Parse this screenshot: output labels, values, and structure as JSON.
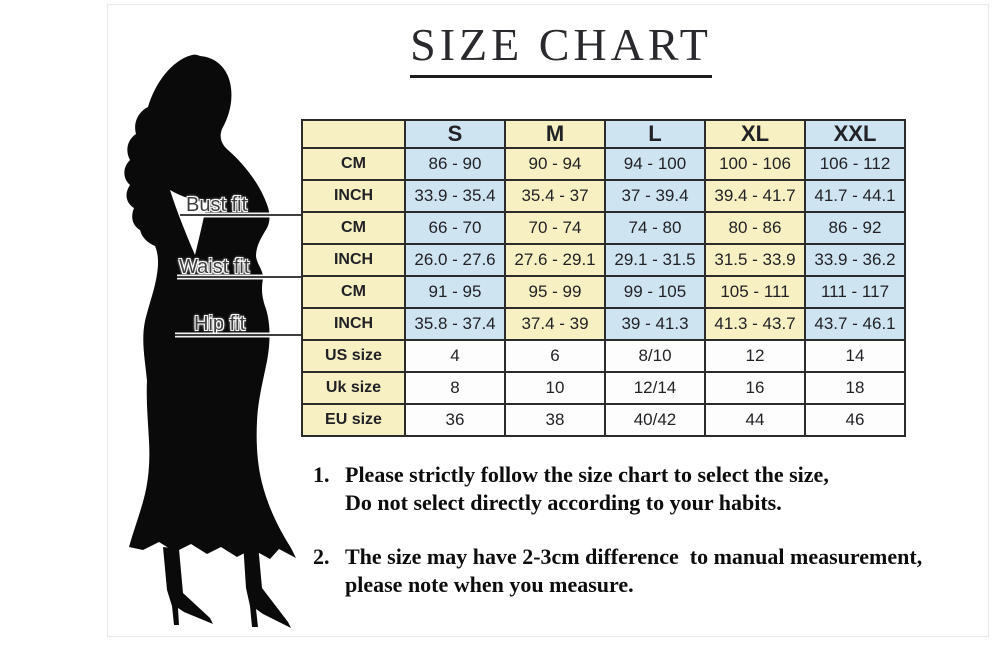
{
  "title": "SIZE CHART",
  "fit_labels": {
    "bust": "Bust fit",
    "waist": "Waist fit",
    "hip": "Hip fit"
  },
  "notes": [
    {
      "num": "1.",
      "line1": "Please strictly follow the size chart to select the size,",
      "line2": "Do not select directly according to your habits."
    },
    {
      "num": "2.",
      "line1": "The size may have 2-3cm difference  to manual measurement,",
      "line2": "please note when you measure."
    }
  ],
  "colors": {
    "yellow": "#f6f0c2",
    "blue": "#cee4f1",
    "white_cell": "#fdfdfd",
    "border": "#2b2b2b",
    "text": "#222226"
  },
  "chart_data": {
    "type": "table",
    "title": "SIZE CHART",
    "columns": [
      "S",
      "M",
      "L",
      "XL",
      "XXL"
    ],
    "rows": [
      {
        "key": "bust_cm",
        "group": "Bust fit",
        "label": "CM",
        "band": "alt",
        "values": [
          "86 - 90",
          "90 - 94",
          "94 - 100",
          "100 - 106",
          "106 - 112"
        ]
      },
      {
        "key": "bust_inch",
        "group": "Bust fit",
        "label": "INCH",
        "band": "alt",
        "values": [
          "33.9 - 35.4",
          "35.4 - 37",
          "37 - 39.4",
          "39.4 - 41.7",
          "41.7 - 44.1"
        ]
      },
      {
        "key": "waist_cm",
        "group": "Waist fit",
        "label": "CM",
        "band": "alt",
        "values": [
          "66 - 70",
          "70 - 74",
          "74 - 80",
          "80 - 86",
          "86 - 92"
        ]
      },
      {
        "key": "waist_inch",
        "group": "Waist fit",
        "label": "INCH",
        "band": "alt",
        "values": [
          "26.0 - 27.6",
          "27.6 - 29.1",
          "29.1 - 31.5",
          "31.5 - 33.9",
          "33.9 - 36.2"
        ]
      },
      {
        "key": "hip_cm",
        "group": "Hip fit",
        "label": "CM",
        "band": "alt",
        "values": [
          "91 - 95",
          "95 - 99",
          "99 - 105",
          "105 - 111",
          "111 - 117"
        ]
      },
      {
        "key": "hip_inch",
        "group": "Hip fit",
        "label": "INCH",
        "band": "alt",
        "values": [
          "35.8 - 37.4",
          "37.4 - 39",
          "39 - 41.3",
          "41.3 - 43.7",
          "43.7 - 46.1"
        ]
      },
      {
        "key": "us_size",
        "group": "",
        "label": "US size",
        "band": "plain",
        "values": [
          "4",
          "6",
          "8/10",
          "12",
          "14"
        ]
      },
      {
        "key": "uk_size",
        "group": "",
        "label": "Uk size",
        "band": "plain",
        "values": [
          "8",
          "10",
          "12/14",
          "16",
          "18"
        ]
      },
      {
        "key": "eu_size",
        "group": "",
        "label": "EU size",
        "band": "plain",
        "values": [
          "36",
          "38",
          "40/42",
          "44",
          "46"
        ]
      }
    ]
  }
}
